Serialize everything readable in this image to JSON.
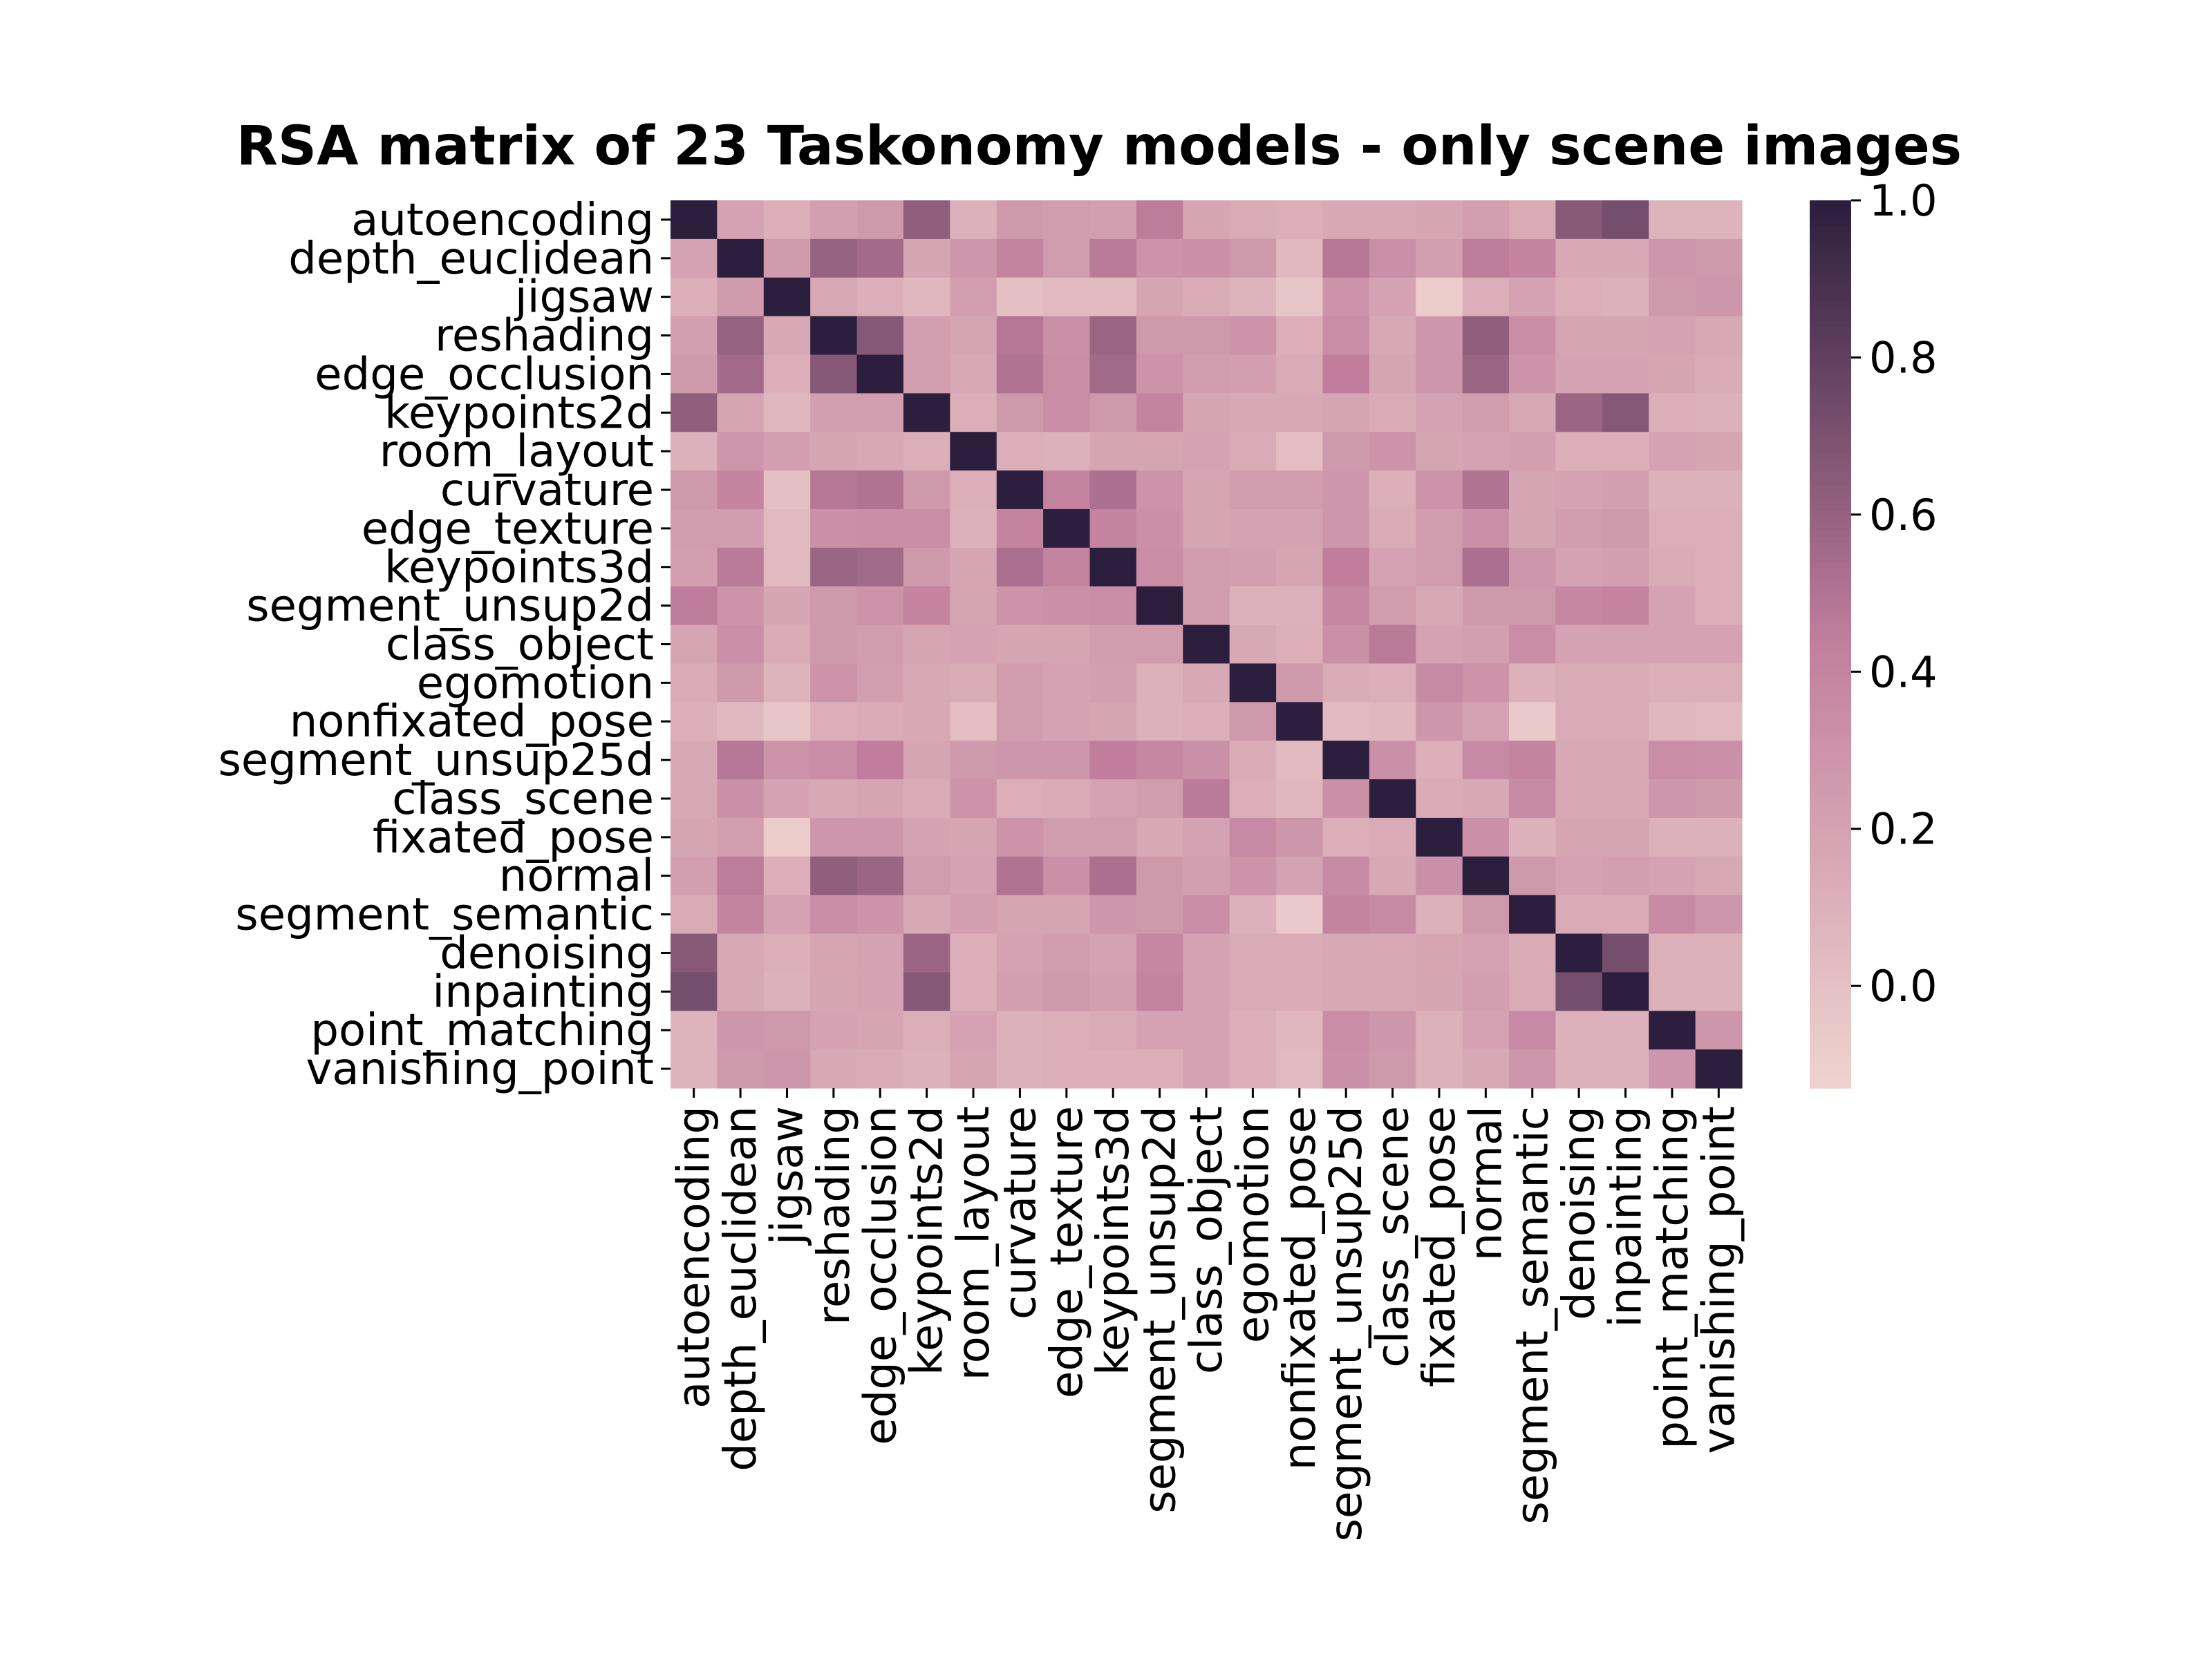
{
  "chart_data": {
    "type": "heatmap",
    "title": "RSA matrix of 23 Taskonomy models - only scene images",
    "labels": [
      "autoencoding",
      "depth_euclidean",
      "jigsaw",
      "reshading",
      "edge_occlusion",
      "keypoints2d",
      "room_layout",
      "curvature",
      "edge_texture",
      "keypoints3d",
      "segment_unsup2d",
      "class_object",
      "egomotion",
      "nonfixated_pose",
      "segment_unsup25d",
      "class_scene",
      "fixated_pose",
      "normal",
      "segment_semantic",
      "denoising",
      "inpainting",
      "point_matching",
      "vanishing_point"
    ],
    "matrix": [
      [
        1.0,
        0.2,
        0.12,
        0.22,
        0.26,
        0.62,
        0.1,
        0.26,
        0.24,
        0.22,
        0.45,
        0.18,
        0.14,
        0.12,
        0.16,
        0.16,
        0.18,
        0.22,
        0.14,
        0.65,
        0.72,
        0.08,
        0.08
      ],
      [
        0.2,
        1.0,
        0.25,
        0.6,
        0.55,
        0.18,
        0.28,
        0.4,
        0.24,
        0.46,
        0.3,
        0.32,
        0.26,
        0.05,
        0.48,
        0.32,
        0.22,
        0.45,
        0.4,
        0.16,
        0.16,
        0.28,
        0.26
      ],
      [
        0.12,
        0.25,
        1.0,
        0.16,
        0.12,
        0.06,
        0.22,
        0.0,
        0.04,
        0.04,
        0.18,
        0.14,
        0.08,
        -0.04,
        0.3,
        0.2,
        -0.08,
        0.12,
        0.2,
        0.12,
        0.1,
        0.26,
        0.28
      ],
      [
        0.22,
        0.6,
        0.16,
        1.0,
        0.66,
        0.22,
        0.18,
        0.48,
        0.32,
        0.58,
        0.26,
        0.26,
        0.3,
        0.12,
        0.34,
        0.16,
        0.28,
        0.62,
        0.34,
        0.18,
        0.18,
        0.2,
        0.16
      ],
      [
        0.26,
        0.55,
        0.12,
        0.66,
        1.0,
        0.22,
        0.16,
        0.5,
        0.34,
        0.56,
        0.3,
        0.24,
        0.22,
        0.14,
        0.44,
        0.18,
        0.28,
        0.58,
        0.3,
        0.2,
        0.2,
        0.18,
        0.14
      ],
      [
        0.62,
        0.18,
        0.06,
        0.22,
        0.22,
        1.0,
        0.12,
        0.26,
        0.34,
        0.26,
        0.4,
        0.18,
        0.16,
        0.16,
        0.18,
        0.14,
        0.2,
        0.24,
        0.16,
        0.58,
        0.66,
        0.12,
        0.1
      ],
      [
        0.1,
        0.28,
        0.22,
        0.18,
        0.16,
        0.12,
        1.0,
        0.12,
        0.1,
        0.18,
        0.18,
        0.2,
        0.14,
        0.02,
        0.26,
        0.3,
        0.18,
        0.2,
        0.22,
        0.12,
        0.12,
        0.2,
        0.18
      ],
      [
        0.26,
        0.4,
        0.0,
        0.48,
        0.5,
        0.26,
        0.12,
        1.0,
        0.4,
        0.52,
        0.3,
        0.18,
        0.24,
        0.24,
        0.28,
        0.12,
        0.3,
        0.5,
        0.18,
        0.2,
        0.22,
        0.1,
        0.1
      ],
      [
        0.24,
        0.24,
        0.04,
        0.32,
        0.34,
        0.34,
        0.1,
        0.4,
        1.0,
        0.4,
        0.32,
        0.18,
        0.2,
        0.2,
        0.28,
        0.14,
        0.24,
        0.32,
        0.18,
        0.24,
        0.26,
        0.12,
        0.12
      ],
      [
        0.22,
        0.46,
        0.04,
        0.58,
        0.56,
        0.26,
        0.18,
        0.52,
        0.4,
        1.0,
        0.34,
        0.24,
        0.22,
        0.18,
        0.44,
        0.2,
        0.24,
        0.52,
        0.28,
        0.2,
        0.22,
        0.14,
        0.12
      ],
      [
        0.45,
        0.3,
        0.18,
        0.26,
        0.3,
        0.4,
        0.18,
        0.3,
        0.32,
        0.34,
        1.0,
        0.24,
        0.1,
        0.1,
        0.38,
        0.24,
        0.16,
        0.26,
        0.26,
        0.38,
        0.4,
        0.2,
        0.12
      ],
      [
        0.18,
        0.32,
        0.14,
        0.26,
        0.24,
        0.18,
        0.2,
        0.18,
        0.18,
        0.24,
        0.24,
        1.0,
        0.16,
        0.12,
        0.32,
        0.46,
        0.2,
        0.22,
        0.34,
        0.2,
        0.2,
        0.2,
        0.2
      ],
      [
        0.14,
        0.26,
        0.08,
        0.3,
        0.22,
        0.16,
        0.14,
        0.24,
        0.2,
        0.22,
        0.1,
        0.16,
        1.0,
        0.26,
        0.14,
        0.12,
        0.36,
        0.3,
        0.1,
        0.14,
        0.14,
        0.12,
        0.12
      ],
      [
        0.12,
        0.05,
        -0.04,
        0.12,
        0.14,
        0.16,
        0.02,
        0.24,
        0.2,
        0.18,
        0.1,
        0.12,
        0.26,
        1.0,
        0.04,
        0.06,
        0.28,
        0.2,
        -0.06,
        0.14,
        0.14,
        0.06,
        0.04
      ],
      [
        0.16,
        0.48,
        0.3,
        0.34,
        0.44,
        0.18,
        0.26,
        0.28,
        0.28,
        0.44,
        0.38,
        0.32,
        0.14,
        0.04,
        1.0,
        0.32,
        0.12,
        0.36,
        0.4,
        0.16,
        0.16,
        0.34,
        0.32
      ],
      [
        0.16,
        0.32,
        0.2,
        0.16,
        0.18,
        0.14,
        0.3,
        0.12,
        0.14,
        0.2,
        0.24,
        0.46,
        0.12,
        0.06,
        0.32,
        1.0,
        0.14,
        0.16,
        0.36,
        0.16,
        0.16,
        0.28,
        0.26
      ],
      [
        0.18,
        0.22,
        -0.08,
        0.28,
        0.28,
        0.2,
        0.18,
        0.3,
        0.24,
        0.24,
        0.16,
        0.2,
        0.36,
        0.28,
        0.12,
        0.14,
        1.0,
        0.32,
        0.1,
        0.18,
        0.18,
        0.1,
        0.1
      ],
      [
        0.22,
        0.45,
        0.12,
        0.62,
        0.58,
        0.24,
        0.2,
        0.5,
        0.32,
        0.52,
        0.26,
        0.22,
        0.3,
        0.2,
        0.36,
        0.16,
        0.32,
        1.0,
        0.26,
        0.2,
        0.22,
        0.2,
        0.16
      ],
      [
        0.14,
        0.4,
        0.2,
        0.34,
        0.3,
        0.16,
        0.22,
        0.18,
        0.18,
        0.28,
        0.26,
        0.34,
        0.1,
        -0.06,
        0.4,
        0.36,
        0.1,
        0.26,
        1.0,
        0.14,
        0.14,
        0.36,
        0.28
      ],
      [
        0.65,
        0.16,
        0.12,
        0.18,
        0.2,
        0.58,
        0.12,
        0.2,
        0.24,
        0.2,
        0.38,
        0.2,
        0.14,
        0.14,
        0.16,
        0.16,
        0.18,
        0.2,
        0.14,
        1.0,
        0.72,
        0.1,
        0.1
      ],
      [
        0.72,
        0.16,
        0.1,
        0.18,
        0.2,
        0.66,
        0.12,
        0.22,
        0.26,
        0.22,
        0.4,
        0.2,
        0.14,
        0.14,
        0.16,
        0.16,
        0.18,
        0.22,
        0.14,
        0.72,
        1.0,
        0.1,
        0.1
      ],
      [
        0.08,
        0.28,
        0.26,
        0.2,
        0.18,
        0.12,
        0.2,
        0.1,
        0.12,
        0.14,
        0.2,
        0.2,
        0.12,
        0.06,
        0.34,
        0.28,
        0.1,
        0.2,
        0.36,
        0.1,
        0.1,
        1.0,
        0.28
      ],
      [
        0.08,
        0.26,
        0.28,
        0.16,
        0.14,
        0.1,
        0.18,
        0.1,
        0.12,
        0.12,
        0.12,
        0.2,
        0.12,
        0.04,
        0.32,
        0.26,
        0.1,
        0.16,
        0.28,
        0.1,
        0.1,
        0.28,
        1.0
      ]
    ],
    "colorbar": {
      "vmin": -0.13,
      "vmax": 1.0,
      "ticks": [
        "0.0",
        "0.2",
        "0.4",
        "0.6",
        "0.8",
        "1.0"
      ],
      "low_color": "#efd3cf",
      "mid_color": "#c17f9d",
      "high_color": "#2c1e3d"
    },
    "grid": false,
    "legend": "colorbar-right"
  }
}
